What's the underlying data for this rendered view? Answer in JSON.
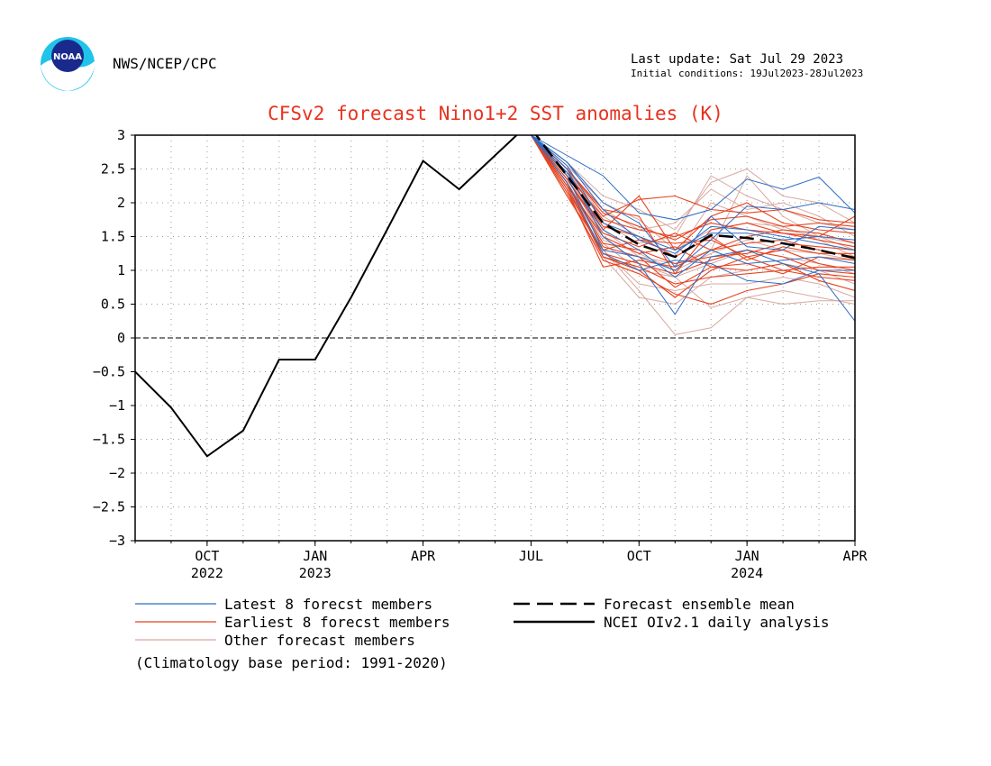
{
  "header": {
    "org": "NWS/NCEP/CPC",
    "last_update": "Last update: Sat Jul 29 2023",
    "initial_conditions": "Initial conditions: 19Jul2023-28Jul2023",
    "logo_text": "NOAA"
  },
  "colors": {
    "latest": "#2b6cc4",
    "earliest": "#e8421e",
    "other": "#d8a8a0",
    "mean": "#000000",
    "analysis": "#000000",
    "title": "#e8321e"
  },
  "legend": {
    "latest": "Latest 8 forecst members",
    "earliest": "Earliest 8 forecst members",
    "other": "Other forecast members",
    "mean": "Forecast ensemble mean",
    "analysis": "NCEI OIv2.1 daily analysis"
  },
  "note": "(Climatology base period: 1991-2020)",
  "chart_data": {
    "type": "line",
    "title": "CFSv2 forecast Nino1+2 SST anomalies (K)",
    "xlabel": "",
    "ylabel": "",
    "ylim": [
      -3,
      3
    ],
    "yticks": [
      3,
      2.5,
      2,
      1.5,
      1,
      0.5,
      0,
      -0.5,
      -1,
      -1.5,
      -2,
      -2.5,
      -3
    ],
    "xlim": [
      "2022-08",
      "2024-04"
    ],
    "xticks": [
      {
        "x": "2022-10",
        "label": "OCT",
        "year": "2022"
      },
      {
        "x": "2023-01",
        "label": "JAN",
        "year": "2023"
      },
      {
        "x": "2023-04",
        "label": "APR",
        "year": ""
      },
      {
        "x": "2023-07",
        "label": "JUL",
        "year": ""
      },
      {
        "x": "2023-10",
        "label": "OCT",
        "year": ""
      },
      {
        "x": "2024-01",
        "label": "JAN",
        "year": "2024"
      },
      {
        "x": "2024-04",
        "label": "APR",
        "year": ""
      }
    ],
    "grid": true,
    "zero_line": true,
    "analysis": {
      "x": [
        "2022-08",
        "2022-09",
        "2022-10",
        "2022-11",
        "2022-12",
        "2023-01",
        "2023-02",
        "2023-03",
        "2023-04",
        "2023-05",
        "2023-06",
        "2023-07"
      ],
      "y": [
        -0.5,
        -1.03,
        -1.75,
        -1.37,
        -0.32,
        -0.32,
        0.6,
        1.6,
        2.62,
        2.2,
        2.7,
        3.2
      ]
    },
    "forecast_months": [
      "2023-07",
      "2023-08",
      "2023-09",
      "2023-10",
      "2023-11",
      "2023-12",
      "2024-01",
      "2024-02",
      "2024-03",
      "2024-04"
    ],
    "ensemble_mean": [
      3.1,
      2.4,
      1.7,
      1.38,
      1.2,
      1.52,
      1.48,
      1.4,
      1.3,
      1.18
    ],
    "latest_members": [
      [
        3.0,
        2.6,
        1.9,
        1.45,
        1.25,
        1.65,
        1.6,
        1.5,
        1.4,
        1.3
      ],
      [
        3.0,
        2.5,
        1.5,
        1.1,
        0.35,
        1.2,
        1.3,
        1.1,
        0.95,
        0.25
      ],
      [
        3.0,
        2.7,
        2.4,
        1.85,
        1.75,
        1.9,
        2.35,
        2.2,
        2.38,
        1.85
      ],
      [
        3.0,
        2.4,
        1.3,
        1.2,
        1.0,
        1.45,
        1.95,
        1.9,
        2.0,
        1.9
      ],
      [
        3.0,
        2.3,
        1.25,
        1.0,
        1.15,
        1.1,
        0.85,
        0.8,
        1.0,
        1.0
      ],
      [
        3.0,
        2.55,
        1.7,
        1.5,
        1.3,
        1.55,
        1.55,
        1.45,
        1.5,
        1.45
      ],
      [
        3.0,
        2.6,
        2.0,
        1.7,
        1.05,
        1.8,
        1.35,
        1.3,
        1.65,
        1.6
      ],
      [
        3.0,
        2.45,
        1.6,
        1.3,
        0.9,
        1.3,
        1.1,
        1.15,
        1.2,
        1.1
      ]
    ],
    "earliest_members": [
      [
        3.0,
        2.3,
        1.2,
        1.0,
        0.6,
        1.0,
        1.2,
        1.3,
        1.1,
        1.0
      ],
      [
        3.0,
        2.2,
        1.05,
        1.15,
        1.05,
        1.3,
        1.5,
        1.6,
        1.55,
        1.4
      ],
      [
        3.0,
        2.4,
        1.8,
        2.05,
        2.1,
        1.9,
        1.85,
        1.9,
        1.75,
        1.7
      ],
      [
        3.0,
        2.35,
        1.6,
        2.1,
        1.3,
        1.8,
        2.0,
        1.7,
        1.6,
        1.55
      ],
      [
        3.0,
        2.1,
        1.3,
        1.45,
        1.4,
        1.45,
        1.2,
        1.0,
        0.9,
        0.85
      ],
      [
        3.0,
        2.25,
        1.5,
        1.25,
        1.35,
        1.05,
        1.1,
        0.95,
        1.2,
        1.15
      ],
      [
        3.0,
        2.5,
        1.9,
        1.8,
        0.95,
        1.6,
        1.7,
        1.55,
        1.5,
        1.8
      ],
      [
        3.0,
        2.15,
        1.15,
        0.95,
        0.65,
        0.5,
        0.7,
        0.8,
        0.95,
        0.9
      ],
      [
        3.0,
        2.3,
        1.4,
        1.3,
        1.1,
        1.2,
        1.25,
        1.4,
        1.35,
        1.3
      ],
      [
        3.0,
        2.45,
        1.75,
        1.6,
        1.5,
        1.7,
        1.6,
        1.55,
        1.45,
        1.35
      ],
      [
        3.0,
        2.2,
        1.25,
        1.1,
        0.95,
        1.15,
        1.3,
        1.2,
        1.0,
        0.95
      ],
      [
        3.0,
        2.35,
        1.55,
        1.35,
        1.55,
        1.3,
        1.4,
        1.45,
        1.3,
        1.2
      ],
      [
        3.0,
        2.3,
        1.35,
        1.2,
        0.75,
        1.05,
        1.0,
        1.1,
        0.85,
        0.7
      ],
      [
        3.0,
        2.4,
        1.65,
        1.5,
        1.2,
        1.5,
        1.15,
        1.35,
        1.25,
        1.25
      ],
      [
        3.0,
        2.25,
        1.2,
        1.05,
        0.8,
        0.9,
        0.95,
        1.0,
        1.05,
        1.05
      ],
      [
        3.0,
        2.5,
        1.85,
        1.65,
        1.45,
        1.75,
        1.8,
        1.65,
        1.7,
        1.65
      ]
    ],
    "other_members": [
      [
        3.0,
        2.6,
        2.1,
        1.9,
        1.6,
        2.3,
        2.5,
        2.1,
        2.0,
        1.7
      ],
      [
        3.0,
        2.2,
        1.3,
        0.7,
        0.05,
        0.15,
        0.6,
        0.7,
        0.6,
        0.5
      ],
      [
        3.0,
        2.5,
        1.8,
        1.5,
        1.2,
        2.0,
        1.8,
        1.6,
        1.5,
        1.4
      ],
      [
        3.0,
        2.3,
        1.4,
        1.0,
        0.9,
        0.45,
        0.6,
        0.5,
        0.55,
        0.55
      ],
      [
        3.0,
        2.4,
        1.6,
        1.2,
        1.1,
        1.3,
        2.4,
        1.8,
        1.5,
        1.3
      ],
      [
        3.0,
        2.1,
        1.2,
        0.6,
        0.5,
        0.9,
        1.0,
        1.1,
        1.0,
        0.8
      ],
      [
        3.0,
        2.5,
        1.7,
        1.4,
        1.5,
        2.4,
        2.1,
        1.9,
        1.7,
        1.6
      ],
      [
        3.0,
        2.35,
        1.5,
        1.1,
        0.9,
        1.1,
        1.3,
        1.2,
        1.1,
        0.95
      ],
      [
        3.0,
        2.45,
        1.9,
        1.6,
        1.7,
        2.2,
        1.9,
        2.0,
        1.8,
        1.5
      ],
      [
        3.0,
        2.2,
        1.3,
        0.8,
        0.7,
        0.8,
        0.8,
        0.9,
        0.8,
        0.6
      ],
      [
        3.0,
        2.55,
        2.0,
        1.75,
        1.3,
        1.6,
        1.7,
        1.65,
        1.45,
        1.2
      ],
      [
        3.0,
        2.3,
        1.45,
        1.25,
        1.0,
        1.25,
        1.45,
        1.3,
        1.25,
        1.15
      ]
    ]
  }
}
